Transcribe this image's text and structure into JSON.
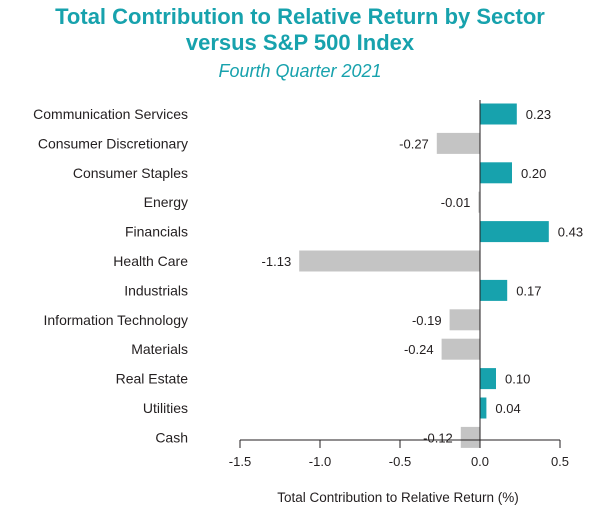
{
  "header": {
    "title_line1": "Total Contribution to Relative Return by Sector",
    "title_line2": "versus S&P 500 Index",
    "subtitle": "Fourth Quarter 2021"
  },
  "colors": {
    "positive": "#17a2ad",
    "negative": "#c4c4c4",
    "title": "#17a2ad",
    "text": "#231f20",
    "axis": "#231f20"
  },
  "chart_data": {
    "type": "bar",
    "orientation": "horizontal",
    "title": "Total Contribution to Relative Return by Sector versus S&P 500 Index",
    "subtitle": "Fourth Quarter 2021",
    "xlabel": "Total Contribution to Relative Return (%)",
    "ylabel": "",
    "xlim": [
      -1.5,
      0.5
    ],
    "xticks": [
      -1.5,
      -1.0,
      -0.5,
      0.0,
      0.5
    ],
    "xtick_labels": [
      "-1.5",
      "-1.0",
      "-0.5",
      "0.0",
      "0.5"
    ],
    "grid": false,
    "categories": [
      "Communication Services",
      "Consumer Discretionary",
      "Consumer Staples",
      "Energy",
      "Financials",
      "Health Care",
      "Industrials",
      "Information Technology",
      "Materials",
      "Real Estate",
      "Utilities",
      "Cash"
    ],
    "values": [
      0.23,
      -0.27,
      0.2,
      -0.01,
      0.43,
      -1.13,
      0.17,
      -0.19,
      -0.24,
      0.1,
      0.04,
      -0.12
    ],
    "value_labels": [
      "0.23",
      "-0.27",
      "0.20",
      "-0.01",
      "0.43",
      "-1.13",
      "0.17",
      "-0.19",
      "-0.24",
      "0.10",
      "0.04",
      "-0.12"
    ]
  }
}
